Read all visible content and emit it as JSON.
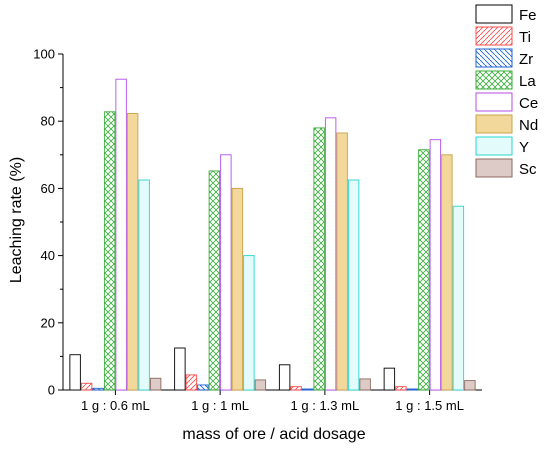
{
  "chart_data": {
    "type": "bar",
    "xlabel": "mass of ore / acid dosage",
    "ylabel": "Leaching rate (%)",
    "ylim": [
      0,
      100
    ],
    "yticks": [
      0,
      20,
      40,
      60,
      80,
      100
    ],
    "grid": false,
    "legend_position": "top-right",
    "categories": [
      "1 g : 0.6 mL",
      "1 g : 1 mL",
      "1 g : 1.3 mL",
      "1 g : 1.5 mL"
    ],
    "series": [
      {
        "name": "Fe",
        "values": [
          10.5,
          12.5,
          7.5,
          6.5
        ],
        "color": "#000000",
        "fill": "none"
      },
      {
        "name": "Ti",
        "values": [
          2.0,
          4.5,
          1.0,
          1.0
        ],
        "color": "#ff4d4d",
        "fill": "hatch-diag"
      },
      {
        "name": "Zr",
        "values": [
          0.5,
          1.5,
          0.3,
          0.3
        ],
        "color": "#1e63d6",
        "fill": "hatch-anti"
      },
      {
        "name": "La",
        "values": [
          82.8,
          65.2,
          78.0,
          71.5
        ],
        "color": "#3aae3a",
        "fill": "crosshatch"
      },
      {
        "name": "Ce",
        "values": [
          92.5,
          70.0,
          81.0,
          74.5
        ],
        "color": "#b44ee6",
        "fill": "none"
      },
      {
        "name": "Nd",
        "values": [
          82.3,
          60.0,
          76.5,
          70.0
        ],
        "color": "#e8c77a",
        "fill": "solid"
      },
      {
        "name": "Y",
        "values": [
          62.5,
          40.0,
          62.5,
          54.7
        ],
        "color": "#27d6d6",
        "fill": "light"
      },
      {
        "name": "Sc",
        "values": [
          3.5,
          3.0,
          3.3,
          2.8
        ],
        "color": "#8b6a5e",
        "fill": "solid-light"
      }
    ]
  }
}
